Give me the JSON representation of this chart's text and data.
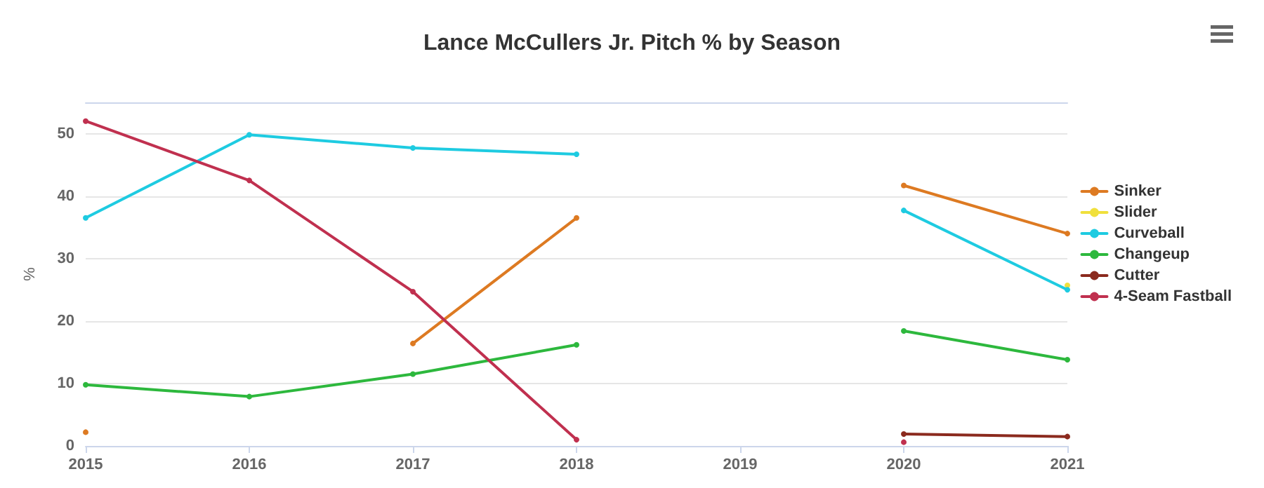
{
  "chart_data": {
    "type": "line",
    "title": "Lance McCullers Jr. Pitch % by Season",
    "ylabel": "%",
    "categories": [
      "2015",
      "2016",
      "2017",
      "2018",
      "2019",
      "2020",
      "2021"
    ],
    "ylim": [
      0,
      55
    ],
    "yticks": [
      0,
      10,
      20,
      30,
      40,
      50
    ],
    "grid": "y",
    "legend": "right",
    "marker": "circle",
    "line_style": "solid",
    "series": [
      {
        "name": "Sinker",
        "color": "#dd7a22",
        "values": [
          2.2,
          null,
          16.4,
          36.5,
          null,
          41.7,
          34
        ]
      },
      {
        "name": "Slider",
        "color": "#f0e03c",
        "values": [
          null,
          null,
          null,
          null,
          null,
          null,
          25.7
        ]
      },
      {
        "name": "Curveball",
        "color": "#1ecbe1",
        "values": [
          36.5,
          49.8,
          47.7,
          46.7,
          null,
          37.7,
          25
        ]
      },
      {
        "name": "Changeup",
        "color": "#2db83d",
        "values": [
          9.8,
          7.9,
          11.5,
          16.2,
          null,
          18.4,
          13.8
        ]
      },
      {
        "name": "Cutter",
        "color": "#8b2a1e",
        "values": [
          null,
          null,
          null,
          null,
          null,
          1.9,
          1.5
        ]
      },
      {
        "name": "4-Seam Fastball",
        "color": "#c0304f",
        "values": [
          52,
          42.5,
          24.7,
          1,
          null,
          0.6,
          null
        ]
      }
    ]
  }
}
